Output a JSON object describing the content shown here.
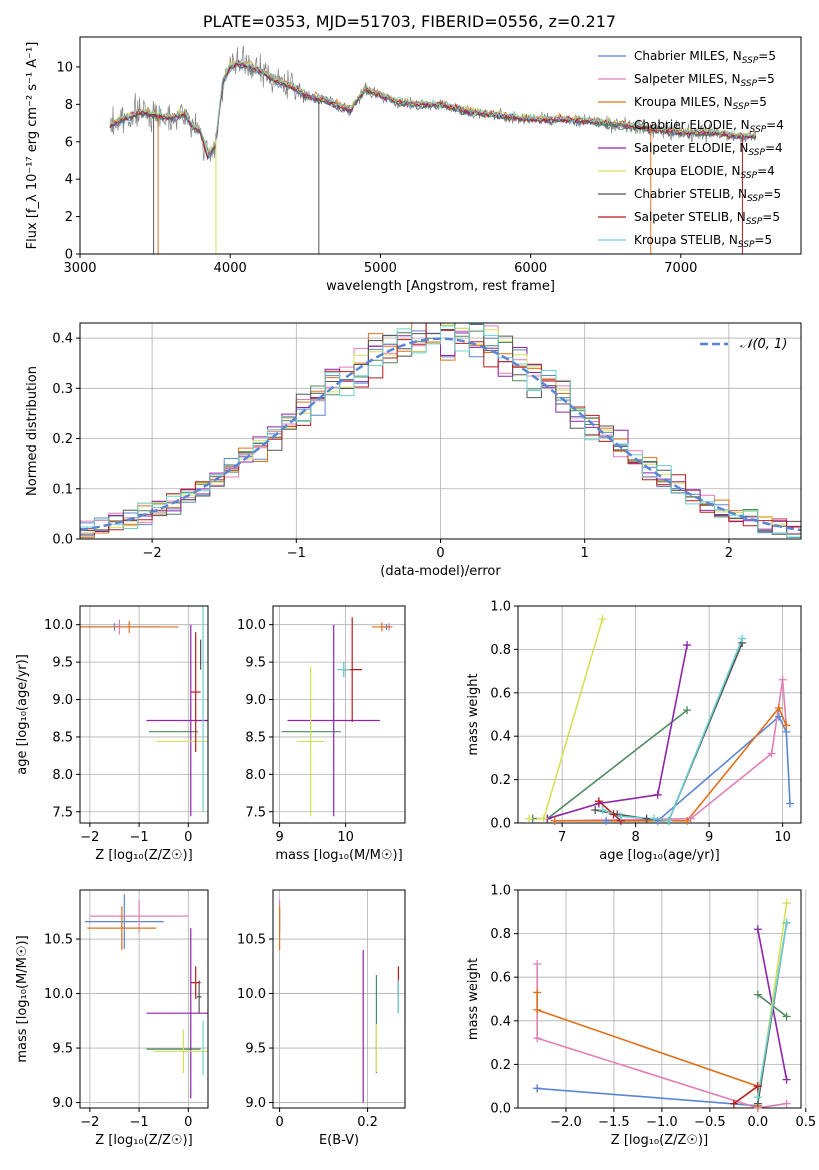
{
  "figure": {
    "title": "PLATE=0353, MJD=51703, FIBERID=0556, z=0.217"
  },
  "colors": {
    "Chabrier MILES": "#5b86d6",
    "Salpeter MILES": "#e07fb5",
    "Kroupa MILES": "#e0701a",
    "Chabrier ELODIE": "#4e8b5e",
    "Salpeter ELODIE": "#8e24aa",
    "Kroupa ELODIE": "#d4e157",
    "Chabrier STELIB": "#555555",
    "Salpeter STELIB": "#b71c1c",
    "Kroupa STELIB": "#6dd0d0"
  },
  "chart_data": [
    {
      "id": "spectrum",
      "type": "line",
      "xlabel": "wavelength [Angstrom, rest frame]",
      "ylabel": "Flux [f_λ 10⁻¹⁷ erg cm⁻² s⁻¹ A⁻¹]",
      "xlim": [
        3000,
        7800
      ],
      "ylim": [
        0,
        11.6
      ],
      "xticks": [
        3000,
        4000,
        5000,
        6000,
        7000
      ],
      "yticks": [
        0,
        2,
        4,
        6,
        8,
        10
      ],
      "legend_position": "top-right",
      "legend": [
        "Chabrier MILES, N_SSP=5",
        "Salpeter MILES, N_SSP=5",
        "Kroupa MILES, N_SSP=5",
        "Chabrier ELODIE, N_SSP=4",
        "Salpeter ELODIE, N_SSP=4",
        "Kroupa ELODIE, N_SSP=4",
        "Chabrier STELIB, N_SSP=5",
        "Salpeter STELIB, N_SSP=5",
        "Kroupa STELIB, N_SSP=5"
      ],
      "continuum": {
        "x": [
          3200,
          3400,
          3600,
          3700,
          3750,
          3800,
          3850,
          3900,
          3950,
          4000,
          4050,
          4100,
          4200,
          4300,
          4400,
          4500,
          4600,
          4700,
          4800,
          4850,
          4900,
          5000,
          5100,
          5200,
          5400,
          5600,
          5800,
          6000,
          6200,
          6400,
          6600,
          6800,
          7000,
          7200,
          7400,
          7500
        ],
        "y": [
          6.9,
          7.6,
          7.3,
          7.5,
          6.8,
          6.6,
          5.2,
          5.8,
          9.2,
          10.0,
          10.2,
          10.1,
          9.8,
          9.3,
          9.0,
          8.5,
          8.3,
          8.0,
          7.7,
          8.3,
          8.8,
          8.5,
          8.2,
          8.0,
          8.0,
          7.6,
          7.4,
          7.2,
          7.2,
          7.1,
          6.9,
          6.7,
          6.5,
          6.5,
          6.3,
          6.3
        ]
      },
      "spikes": [
        {
          "model": "Kroupa ELODIE",
          "x": 3905,
          "ymin": 0
        },
        {
          "model": "Kroupa MILES",
          "x": 3520,
          "ymin": 0
        },
        {
          "model": "Chabrier STELIB",
          "x": 3490,
          "ymin": 0
        },
        {
          "model": "Chabrier STELIB",
          "x": 4590,
          "ymin": 0
        },
        {
          "model": "Kroupa MILES",
          "x": 6800,
          "ymin": 0
        },
        {
          "model": "Salpeter STELIB",
          "x": 7410,
          "ymin": 0
        }
      ]
    },
    {
      "id": "residuals",
      "type": "line",
      "xlabel": "(data-model)/error",
      "ylabel": "Normed distribution",
      "xlim": [
        -2.5,
        2.5
      ],
      "ylim": [
        0,
        0.43
      ],
      "xticks": [
        -2,
        -1,
        0,
        1,
        2
      ],
      "yticks": [
        0.0,
        0.1,
        0.2,
        0.3,
        0.4
      ],
      "grid": true,
      "legend_position": "top-right",
      "legend": [
        "𝒩(0, 1)"
      ],
      "bins": [
        -2.5,
        -2.4,
        -2.3,
        -2.2,
        -2.1,
        -2.0,
        -1.9,
        -1.8,
        -1.7,
        -1.6,
        -1.5,
        -1.4,
        -1.3,
        -1.2,
        -1.1,
        -1.0,
        -0.9,
        -0.8,
        -0.7,
        -0.6,
        -0.5,
        -0.4,
        -0.3,
        -0.2,
        -0.1,
        0.0,
        0.1,
        0.2,
        0.3,
        0.4,
        0.5,
        0.6,
        0.7,
        0.8,
        0.9,
        1.0,
        1.1,
        1.2,
        1.3,
        1.4,
        1.5,
        1.6,
        1.7,
        1.8,
        1.9,
        2.0,
        2.1,
        2.2,
        2.3,
        2.4,
        2.5
      ]
    },
    {
      "id": "age-metallicity",
      "type": "scatter",
      "xlabel": "Z [log₁₀(Z/Z☉)]",
      "ylabel": "age  [log₁₀(age/yr)]",
      "xlim": [
        -2.2,
        0.4
      ],
      "ylim": [
        7.35,
        10.25
      ],
      "xticks": [
        -2,
        -1,
        0
      ],
      "yticks": [
        7.5,
        8.0,
        8.5,
        9.0,
        9.5,
        10.0
      ],
      "grid": true,
      "points": [
        {
          "model": "Chabrier MILES",
          "x": -1.5,
          "y": 9.97,
          "xerr": 0.9,
          "yerr": 0.05
        },
        {
          "model": "Salpeter MILES",
          "x": -1.4,
          "y": 9.97,
          "xerr": 0.8,
          "yerr": 0.1
        },
        {
          "model": "Kroupa MILES",
          "x": -1.2,
          "y": 9.97,
          "xerr": 1.0,
          "yerr": 0.08
        },
        {
          "model": "Chabrier ELODIE",
          "x": -0.3,
          "y": 8.57,
          "xerr": 0.5,
          "yerr": 0.0
        },
        {
          "model": "Salpeter ELODIE",
          "x": 0.05,
          "y": 8.72,
          "xerr": 0.9,
          "yerr": 1.28
        },
        {
          "model": "Kroupa ELODIE",
          "x": -0.05,
          "y": 8.44,
          "xerr": 0.6,
          "yerr": 0.0
        },
        {
          "model": "Chabrier STELIB",
          "x": 0.25,
          "y": 9.6,
          "xerr": 0.0,
          "yerr": 0.2
        },
        {
          "model": "Salpeter STELIB",
          "x": 0.15,
          "y": 9.1,
          "xerr": 0.1,
          "yerr": 0.8
        },
        {
          "model": "Kroupa STELIB",
          "x": 0.3,
          "y": 9.4,
          "xerr": 0.0,
          "yerr": 1.9
        }
      ]
    },
    {
      "id": "age-mass",
      "type": "scatter",
      "xlabel": "mass [log₁₀(M/M☉)]",
      "ylabel": "",
      "xlim": [
        8.9,
        10.9
      ],
      "ylim": [
        7.35,
        10.25
      ],
      "xticks": [
        9,
        10
      ],
      "yticks": [
        7.5,
        8.0,
        8.5,
        9.0,
        9.5,
        10.0
      ],
      "grid": true,
      "points": [
        {
          "model": "Chabrier MILES",
          "x": 10.62,
          "y": 9.97,
          "xerr": 0.05,
          "yerr": 0.04
        },
        {
          "model": "Salpeter MILES",
          "x": 10.66,
          "y": 9.97,
          "xerr": 0.05,
          "yerr": 0.05
        },
        {
          "model": "Kroupa MILES",
          "x": 10.55,
          "y": 9.97,
          "xerr": 0.15,
          "yerr": 0.06
        },
        {
          "model": "Chabrier ELODIE",
          "x": 9.48,
          "y": 8.57,
          "xerr": 0.45,
          "yerr": 0.0
        },
        {
          "model": "Salpeter ELODIE",
          "x": 9.82,
          "y": 8.72,
          "xerr": 0.7,
          "yerr": 1.28
        },
        {
          "model": "Kroupa ELODIE",
          "x": 9.47,
          "y": 8.44,
          "xerr": 0.2,
          "yerr": 1.0
        },
        {
          "model": "Chabrier STELIB",
          "x": 9.97,
          "y": 9.4,
          "xerr": 0.05,
          "yerr": 0.1
        },
        {
          "model": "Salpeter STELIB",
          "x": 10.1,
          "y": 9.4,
          "xerr": 0.15,
          "yerr": 0.7
        },
        {
          "model": "Kroupa STELIB",
          "x": 9.97,
          "y": 9.4,
          "xerr": 0.1,
          "yerr": 0.1
        }
      ]
    },
    {
      "id": "weights-age",
      "type": "line",
      "xlabel": "age  [log₁₀(age/yr)]",
      "ylabel": "mass weight",
      "xlim": [
        6.4,
        10.25
      ],
      "ylim": [
        0,
        1
      ],
      "xticks": [
        7,
        8,
        9,
        10
      ],
      "yticks": [
        0.0,
        0.2,
        0.4,
        0.6,
        0.8,
        1.0
      ],
      "grid": true,
      "series": [
        {
          "name": "Chabrier MILES",
          "x": [
            7.6,
            8.3,
            9.95,
            10.05,
            10.1
          ],
          "y": [
            0.01,
            0.01,
            0.49,
            0.42,
            0.09
          ]
        },
        {
          "name": "Salpeter MILES",
          "x": [
            6.9,
            8.75,
            9.85,
            10.0,
            10.05
          ],
          "y": [
            0.01,
            0.02,
            0.32,
            0.66,
            0.45
          ]
        },
        {
          "name": "Kroupa MILES",
          "x": [
            6.9,
            8.7,
            9.95,
            10.05
          ],
          "y": [
            0.01,
            0.01,
            0.53,
            0.45
          ]
        },
        {
          "name": "Chabrier ELODIE",
          "x": [
            6.6,
            6.8,
            8.7
          ],
          "y": [
            0.02,
            0.02,
            0.52
          ]
        },
        {
          "name": "Salpeter ELODIE",
          "x": [
            6.8,
            7.5,
            8.3,
            8.7
          ],
          "y": [
            0.02,
            0.09,
            0.13,
            0.82
          ]
        },
        {
          "name": "Kroupa ELODIE",
          "x": [
            6.55,
            6.75,
            7.55
          ],
          "y": [
            0.02,
            0.02,
            0.94
          ]
        },
        {
          "name": "Chabrier STELIB",
          "x": [
            7.45,
            7.75,
            8.15,
            8.45,
            9.45
          ],
          "y": [
            0.06,
            0.04,
            0.02,
            0.01,
            0.83
          ]
        },
        {
          "name": "Salpeter STELIB",
          "x": [
            7.5,
            7.7,
            7.8
          ],
          "y": [
            0.1,
            0.04,
            0.01
          ]
        },
        {
          "name": "Kroupa STELIB",
          "x": [
            7.55,
            7.8,
            8.25,
            8.45,
            9.45
          ],
          "y": [
            0.06,
            0.03,
            0.02,
            0.01,
            0.85
          ]
        }
      ]
    },
    {
      "id": "mass-metallicity",
      "type": "scatter",
      "xlabel": "Z [log₁₀(Z/Z☉)]",
      "ylabel": "mass [log₁₀(M/M☉)]",
      "xlim": [
        -2.2,
        0.4
      ],
      "ylim": [
        8.95,
        10.95
      ],
      "xticks": [
        -2,
        -1,
        0
      ],
      "yticks": [
        9.0,
        9.5,
        10.0,
        10.5
      ],
      "grid": true,
      "points": [
        {
          "model": "Chabrier MILES",
          "x": -1.3,
          "y": 10.66,
          "xerr": 0.8,
          "yerr": 0.25
        },
        {
          "model": "Salpeter MILES",
          "x": -1.0,
          "y": 10.71,
          "xerr": 1.0,
          "yerr": 0.15
        },
        {
          "model": "Kroupa MILES",
          "x": -1.35,
          "y": 10.6,
          "xerr": 0.7,
          "yerr": 0.2
        },
        {
          "model": "Chabrier ELODIE",
          "x": -0.3,
          "y": 9.49,
          "xerr": 0.55,
          "yerr": 0.0
        },
        {
          "model": "Salpeter ELODIE",
          "x": 0.05,
          "y": 9.82,
          "xerr": 0.9,
          "yerr": 0.78
        },
        {
          "model": "Kroupa ELODIE",
          "x": -0.1,
          "y": 9.47,
          "xerr": 0.6,
          "yerr": 0.2
        },
        {
          "model": "Chabrier STELIB",
          "x": 0.22,
          "y": 9.97,
          "xerr": 0.05,
          "yerr": 0.15
        },
        {
          "model": "Salpeter STELIB",
          "x": 0.15,
          "y": 10.1,
          "xerr": 0.1,
          "yerr": 0.15
        },
        {
          "model": "Kroupa STELIB",
          "x": 0.3,
          "y": 9.5,
          "xerr": 0.0,
          "yerr": 0.25
        }
      ]
    },
    {
      "id": "mass-ebv",
      "type": "scatter",
      "xlabel": "E(B-V)",
      "ylabel": "",
      "xlim": [
        -0.015,
        0.285
      ],
      "ylim": [
        8.95,
        10.95
      ],
      "xticks": [
        0.0,
        0.2
      ],
      "yticks": [
        9.0,
        9.5,
        10.0,
        10.5
      ],
      "grid": true,
      "points": [
        {
          "model": "Chabrier MILES",
          "x": 0.0,
          "y": 10.66,
          "xerr": 0.0,
          "yerr": 0.1
        },
        {
          "model": "Salpeter MILES",
          "x": 0.0,
          "y": 10.71,
          "xerr": 0.0,
          "yerr": 0.15
        },
        {
          "model": "Kroupa MILES",
          "x": 0.0,
          "y": 10.6,
          "xerr": 0.0,
          "yerr": 0.2
        },
        {
          "model": "Chabrier ELODIE",
          "x": 0.22,
          "y": 9.72,
          "xerr": 0.0,
          "yerr": 0.45
        },
        {
          "model": "Salpeter ELODIE",
          "x": 0.19,
          "y": 9.7,
          "xerr": 0.0,
          "yerr": 0.7
        },
        {
          "model": "Kroupa ELODIE",
          "x": 0.22,
          "y": 9.5,
          "xerr": 0.0,
          "yerr": 0.22
        },
        {
          "model": "Chabrier STELIB",
          "x": 0.27,
          "y": 9.97,
          "xerr": 0.0,
          "yerr": 0.15
        },
        {
          "model": "Salpeter STELIB",
          "x": 0.27,
          "y": 10.1,
          "xerr": 0.0,
          "yerr": 0.15
        },
        {
          "model": "Kroupa STELIB",
          "x": 0.27,
          "y": 9.97,
          "xerr": 0.0,
          "yerr": 0.15
        }
      ]
    },
    {
      "id": "weights-metallicity",
      "type": "line",
      "xlabel": "Z [log₁₀(Z/Z☉)]",
      "ylabel": "mass weight",
      "xlim": [
        -2.5,
        0.45
      ],
      "ylim": [
        0,
        1
      ],
      "xticks": [
        -2.0,
        -1.5,
        -1.0,
        -0.5,
        0.0,
        0.5
      ],
      "xticklabels": [
        "−2.0",
        "−1.5",
        "−1.0",
        "−0.5",
        "0.0",
        "0.5"
      ],
      "yticks": [
        0.0,
        0.2,
        0.4,
        0.6,
        0.8,
        1.0
      ],
      "grid": true,
      "series": [
        {
          "name": "Chabrier MILES",
          "x": [
            -2.3,
            -2.3,
            0.0,
            0.0
          ],
          "y": [
            0.09,
            0.09,
            0.01,
            0.01
          ]
        },
        {
          "name": "Salpeter MILES",
          "x": [
            -2.3,
            -2.3,
            0.0,
            0.3
          ],
          "y": [
            0.66,
            0.32,
            0.0,
            0.02
          ]
        },
        {
          "name": "Kroupa MILES",
          "x": [
            -2.3,
            -2.3,
            0.0,
            0.0
          ],
          "y": [
            0.53,
            0.45,
            0.1,
            0.01
          ]
        },
        {
          "name": "Chabrier ELODIE",
          "x": [
            0.0,
            0.3
          ],
          "y": [
            0.52,
            0.42
          ]
        },
        {
          "name": "Salpeter ELODIE",
          "x": [
            0.0,
            0.3
          ],
          "y": [
            0.82,
            0.13
          ]
        },
        {
          "name": "Kroupa ELODIE",
          "x": [
            0.0,
            0.3
          ],
          "y": [
            0.02,
            0.94
          ]
        },
        {
          "name": "Chabrier STELIB",
          "x": [
            0.0,
            0.3
          ],
          "y": [
            0.02,
            0.85
          ]
        },
        {
          "name": "Salpeter STELIB",
          "x": [
            -0.25,
            0.0
          ],
          "y": [
            0.02,
            0.1
          ]
        },
        {
          "name": "Kroupa STELIB",
          "x": [
            0.0,
            0.3
          ],
          "y": [
            0.05,
            0.85
          ]
        }
      ]
    }
  ]
}
